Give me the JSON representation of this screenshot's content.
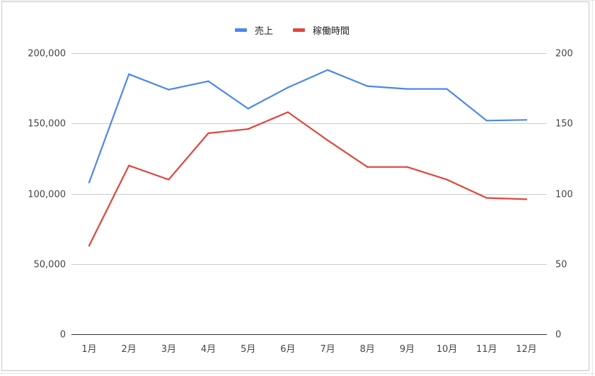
{
  "chart_data": {
    "type": "line",
    "title": "",
    "categories": [
      "1月",
      "2月",
      "3月",
      "4月",
      "5月",
      "6月",
      "7月",
      "8月",
      "9月",
      "10月",
      "11月",
      "12月"
    ],
    "series": [
      {
        "name": "売上",
        "axis": "left",
        "color": "#4a87ee",
        "values": [
          108000,
          185000,
          174000,
          180000,
          160500,
          175500,
          188000,
          176500,
          174500,
          174500,
          152000,
          152500
        ]
      },
      {
        "name": "稼働時間",
        "axis": "right",
        "color": "#e0463b",
        "values": [
          63,
          120,
          110,
          143,
          146,
          158,
          138,
          119,
          119,
          110,
          97,
          96
        ]
      }
    ],
    "y_left": {
      "ylim": [
        0,
        200000
      ],
      "ticks": [
        0,
        50000,
        100000,
        150000,
        200000
      ],
      "tick_labels": [
        "0",
        "50,000",
        "100,000",
        "150,000",
        "200,000"
      ]
    },
    "y_right": {
      "ylim": [
        0,
        200
      ],
      "ticks": [
        0,
        50,
        100,
        150,
        200
      ],
      "tick_labels": [
        "0",
        "50",
        "100",
        "150",
        "200"
      ]
    },
    "grid": true,
    "legend_position": "top"
  }
}
